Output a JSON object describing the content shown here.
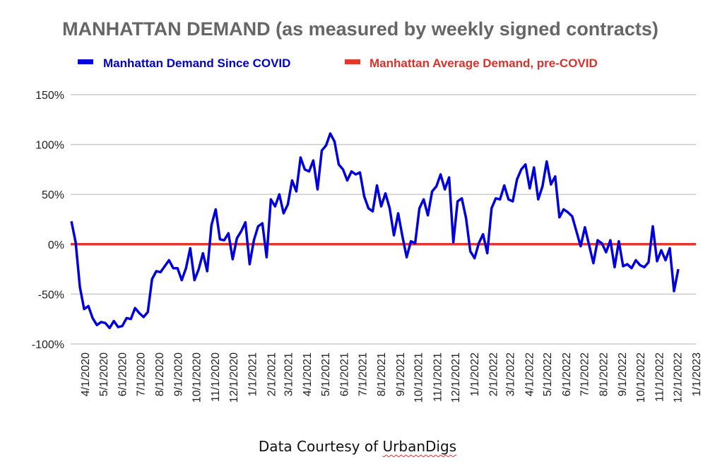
{
  "chart_data": {
    "type": "line",
    "title": "MANHATTAN DEMAND (as measured by weekly signed contracts)",
    "xlabel": "",
    "ylabel": "",
    "ylim": [
      -100,
      150
    ],
    "y_ticks": [
      150,
      100,
      50,
      0,
      -50,
      -100
    ],
    "y_tick_labels": [
      "150%",
      "100%",
      "50%",
      "0%",
      "-50%",
      "-100%"
    ],
    "x_tick_labels": [
      "4/1/2020",
      "5/1/2020",
      "6/1/2020",
      "7/1/2020",
      "8/1/2020",
      "9/1/2020",
      "10/1/2020",
      "11/1/2020",
      "12/1/2020",
      "1/1/2021",
      "2/1/2021",
      "3/1/2021",
      "4/1/2021",
      "5/1/2021",
      "6/1/2021",
      "7/1/2021",
      "8/1/2021",
      "9/1/2021",
      "10/1/2021",
      "11/1/2021",
      "12/1/2021",
      "1/1/2022",
      "2/1/2022",
      "3/1/2022",
      "4/1/2022",
      "5/1/2022",
      "6/1/2022",
      "7/1/2022",
      "8/1/2022",
      "9/1/2022",
      "10/1/2022",
      "11/1/2022",
      "12/1/2022",
      "1/1/2023"
    ],
    "x_range": [
      "3/1/2020",
      "1/1/2023"
    ],
    "grid": true,
    "legend_position": "top-center",
    "series": [
      {
        "name": "Manhattan Demand Since COVID",
        "color": "#0000dd",
        "x_start": "3/10/2020",
        "x_step_days": 7,
        "values": [
          23,
          2,
          -43,
          -65,
          -62,
          -74,
          -81,
          -78,
          -79,
          -84,
          -77,
          -83,
          -82,
          -74,
          -75,
          -64,
          -69,
          -73,
          -68,
          -35,
          -27,
          -28,
          -22,
          -16,
          -24,
          -24,
          -36,
          -24,
          -4,
          -36,
          -25,
          -9,
          -27,
          19,
          35,
          5,
          4,
          11,
          -15,
          6,
          13,
          22,
          -20,
          4,
          18,
          21,
          -13,
          45,
          38,
          50,
          31,
          40,
          64,
          53,
          87,
          75,
          73,
          84,
          55,
          94,
          99,
          111,
          103,
          80,
          75,
          64,
          73,
          70,
          72,
          48,
          36,
          33,
          59,
          38,
          51,
          36,
          9,
          31,
          8,
          -13,
          3,
          1,
          36,
          45,
          29,
          53,
          58,
          70,
          55,
          67,
          2,
          43,
          46,
          26,
          -7,
          -14,
          1,
          10,
          -9,
          36,
          46,
          45,
          59,
          45,
          43,
          65,
          75,
          80,
          56,
          77,
          45,
          58,
          83,
          60,
          68,
          27,
          35,
          32,
          28,
          13,
          -2,
          17,
          -1,
          -19,
          4,
          1,
          -8,
          4,
          -23,
          3,
          -22,
          -20,
          -24,
          -16,
          -21,
          -23,
          -18,
          18,
          -17,
          -6,
          -16,
          -4,
          -47,
          -25
        ]
      },
      {
        "name": "Manhattan Average Demand, pre-COVID",
        "color": "#e03a2f",
        "constant": 0
      }
    ]
  },
  "caption": {
    "prefix": "Data Courtesy of ",
    "source": "UrbanDigs"
  }
}
